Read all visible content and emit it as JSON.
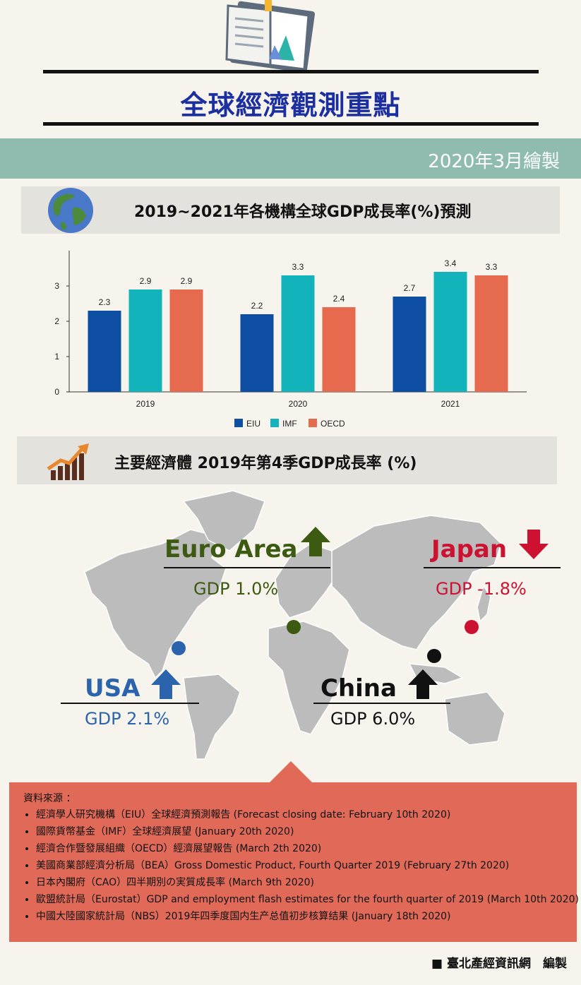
{
  "header": {
    "title": "全球經濟觀測重點",
    "date": "2020年3月繪製"
  },
  "colors": {
    "title": "#1c2fa0",
    "band": "#8fbcaf",
    "eiu": "#0e4ea3",
    "imf": "#12b3bb",
    "oecd": "#e56a4e",
    "panel": "#e4e2dc",
    "source_box": "#e06a57"
  },
  "icons": {
    "book": "book-icon",
    "globe": "globe-icon",
    "growth": "growth-chart-icon"
  },
  "chart_section": {
    "title": "2019~2021年各機構全球GDP成長率(%)預測"
  },
  "chart_data": {
    "type": "bar",
    "categories": [
      "2019",
      "2020",
      "2021"
    ],
    "series": [
      {
        "name": "EIU",
        "values": [
          2.3,
          2.2,
          2.7
        ]
      },
      {
        "name": "IMF",
        "values": [
          2.9,
          3.3,
          3.4
        ]
      },
      {
        "name": "OECD",
        "values": [
          2.9,
          2.4,
          3.3
        ]
      }
    ],
    "yticks": [
      "0",
      "1",
      "2",
      "3"
    ],
    "ylim": [
      0,
      3.6
    ],
    "legend": "bottom"
  },
  "map_section": {
    "title": "主要經濟體 2019年第4季GDP成長率 (%)",
    "regions": [
      {
        "name": "Euro Area",
        "gdp": "GDP 1.0%",
        "color": "#3d5a12",
        "direction": "up"
      },
      {
        "name": "Japan",
        "gdp": "GDP -1.8%",
        "color": "#cc1230",
        "direction": "down"
      },
      {
        "name": "USA",
        "gdp": "GDP 2.1%",
        "color": "#2b64ad",
        "direction": "up"
      },
      {
        "name": "China",
        "gdp": "GDP 6.0%",
        "color": "#111111",
        "direction": "up"
      }
    ]
  },
  "sources": {
    "heading": "資料來源 ：",
    "items": [
      "經濟學人研究機構（EIU）全球經濟預測報告 (Forecast closing date: February 10th 2020)",
      "國際貨幣基金（IMF）全球經濟展望 (January 20th 2020)",
      "經濟合作暨發展組織（OECD）經濟展望報告 (March 2th 2020)",
      "美國商業部經濟分析局（BEA）Gross Domestic Product, Fourth Quarter 2019 (February 27th 2020)",
      "日本內閣府（CAO）四半期別の実質成長率 (March 9th 2020)",
      "歐盟統計局（Eurostat）GDP and employment flash estimates for the fourth quarter of 2019 (March 10th 2020)",
      "中國大陸國家統計局（NBS）2019年四季度国内生产总值初步核算结果 (January 18th 2020)"
    ]
  },
  "footer": {
    "credit": "臺北產經資訊網　編製"
  }
}
